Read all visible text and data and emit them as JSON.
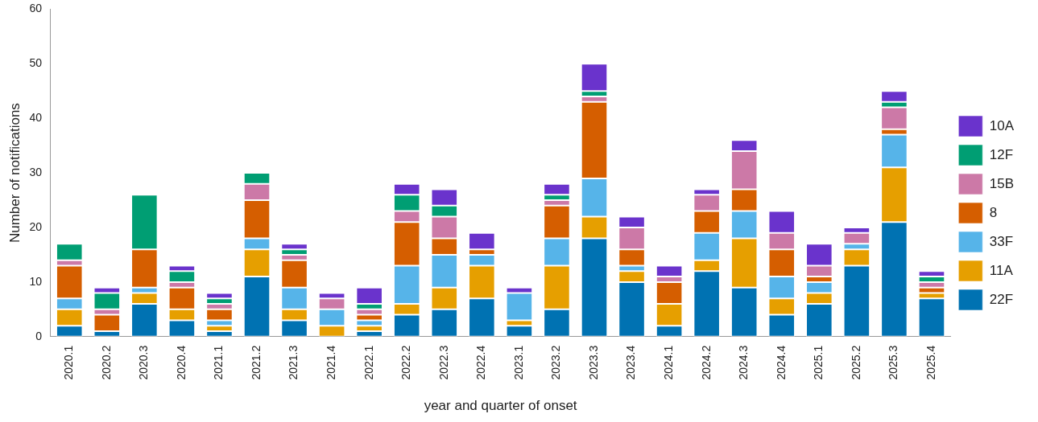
{
  "chart_data": {
    "type": "bar",
    "stacked": true,
    "xlabel": "year and quarter of onset",
    "ylabel": "Number of notifications",
    "categories": [
      "2020.1",
      "2020.2",
      "2020.3",
      "2020.4",
      "2021.1",
      "2021.2",
      "2021.3",
      "2021.4",
      "2022.1",
      "2022.2",
      "2022.3",
      "2022.4",
      "2023.1",
      "2023.2",
      "2023.3",
      "2023.4",
      "2024.1",
      "2024.2",
      "2024.3",
      "2024.4",
      "2025.1",
      "2025.2",
      "2025.3",
      "2025.4"
    ],
    "series": [
      {
        "name": "22F",
        "color": "#0072b2",
        "values": [
          2,
          1,
          6,
          3,
          1,
          11,
          3,
          0,
          1,
          4,
          5,
          7,
          2,
          5,
          18,
          10,
          2,
          12,
          9,
          4,
          6,
          13,
          21,
          7
        ]
      },
      {
        "name": "11A",
        "color": "#e69f00",
        "values": [
          3,
          0,
          2,
          2,
          1,
          5,
          2,
          2,
          1,
          2,
          4,
          6,
          1,
          8,
          4,
          2,
          4,
          2,
          9,
          3,
          2,
          3,
          10,
          1
        ]
      },
      {
        "name": "33F",
        "color": "#56b4e9",
        "values": [
          2,
          0,
          1,
          0,
          1,
          2,
          4,
          3,
          1,
          7,
          6,
          2,
          5,
          5,
          7,
          1,
          0,
          5,
          5,
          4,
          2,
          1,
          6,
          0
        ]
      },
      {
        "name": "8",
        "color": "#d55e00",
        "values": [
          6,
          3,
          7,
          4,
          2,
          7,
          5,
          0,
          1,
          8,
          3,
          1,
          0,
          6,
          14,
          3,
          4,
          4,
          4,
          5,
          1,
          0,
          1,
          1
        ]
      },
      {
        "name": "15B",
        "color": "#cc79a7",
        "values": [
          1,
          1,
          0,
          1,
          1,
          3,
          1,
          2,
          1,
          2,
          4,
          0,
          0,
          1,
          1,
          4,
          1,
          3,
          7,
          3,
          2,
          2,
          4,
          1
        ]
      },
      {
        "name": "12F",
        "color": "#009e73",
        "values": [
          3,
          3,
          10,
          2,
          1,
          2,
          1,
          0,
          1,
          3,
          2,
          0,
          0,
          1,
          1,
          0,
          0,
          0,
          0,
          0,
          0,
          0,
          1,
          1
        ]
      },
      {
        "name": "10A",
        "color": "#6a33cc",
        "values": [
          0,
          1,
          0,
          1,
          1,
          0,
          1,
          1,
          3,
          2,
          3,
          3,
          1,
          2,
          5,
          2,
          2,
          1,
          2,
          4,
          4,
          1,
          2,
          1
        ]
      }
    ],
    "ylim": [
      0,
      60
    ],
    "yticks": [
      0,
      10,
      20,
      30,
      40,
      50,
      60
    ],
    "grid": false,
    "legend": "right"
  }
}
